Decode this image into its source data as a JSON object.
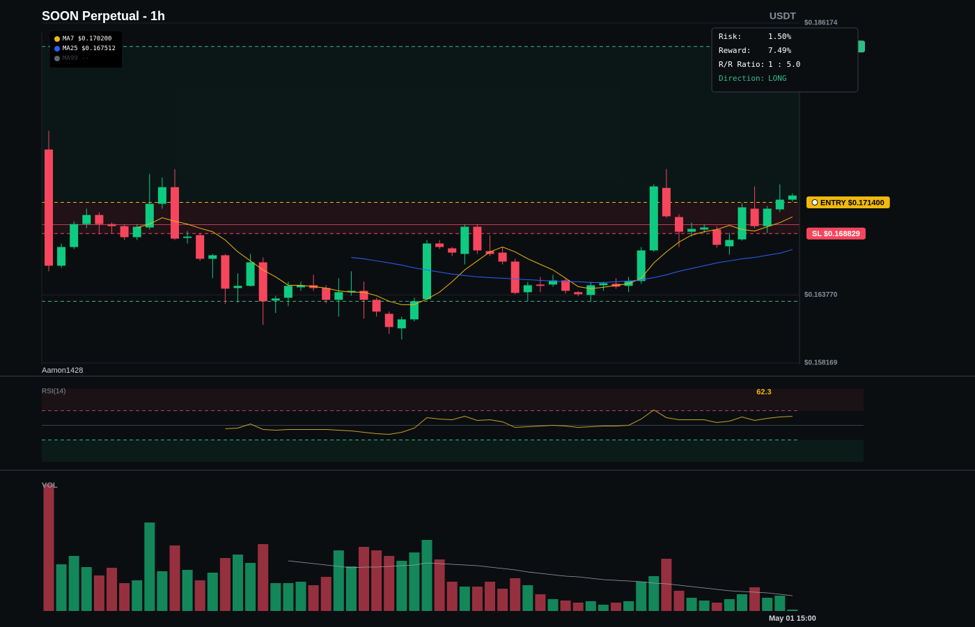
{
  "header": {
    "title": "SOON Perpetual - 1h",
    "quote": "USDT",
    "watermark": "Aamon1428"
  },
  "risk_panel": {
    "rows": [
      [
        "Risk:",
        "1.50%"
      ],
      [
        "Reward:",
        "7.49%"
      ],
      [
        "R/R Ratio:",
        "1 : 5.0"
      ],
      [
        "Direction:",
        "LONG"
      ]
    ]
  },
  "chart_data": [
    {
      "type": "candlestick",
      "categories": [
        null,
        null,
        null,
        null,
        null,
        null,
        null,
        null,
        null,
        null,
        null,
        null,
        null,
        null,
        null,
        null,
        null,
        null,
        null,
        null,
        null,
        null,
        null,
        null,
        null,
        null,
        null,
        null,
        null,
        null,
        null,
        null,
        null,
        null,
        null,
        null,
        null,
        null,
        null,
        null,
        null,
        null,
        null,
        null,
        null,
        null,
        null,
        null,
        null,
        null,
        null,
        null,
        null,
        null,
        null,
        null,
        null,
        null,
        null,
        "May 01 15:00"
      ],
      "open": [
        0.17575,
        0.16618,
        0.16772,
        0.16961,
        0.17036,
        0.16961,
        0.16944,
        0.16853,
        0.16933,
        0.17128,
        0.17265,
        0.16847,
        0.1687,
        0.16675,
        0.16704,
        0.16434,
        0.16452,
        0.16646,
        0.16331,
        0.16354,
        0.1644,
        0.16457,
        0.16434,
        0.16337,
        0.164,
        0.16411,
        0.16337,
        0.16222,
        0.16102,
        0.16176,
        0.16343,
        0.16801,
        0.16761,
        0.16715,
        0.16939,
        0.16738,
        0.16726,
        0.16652,
        0.164,
        0.16463,
        0.16463,
        0.16497,
        0.164,
        0.16377,
        0.16457,
        0.16469,
        0.16452,
        0.16492,
        0.16744,
        0.17259,
        0.17019,
        0.16898,
        0.16916,
        0.16916,
        0.16778,
        0.16835,
        0.17088,
        0.16944,
        0.17082,
        0.17162
      ],
      "high": [
        0.17729,
        0.16801,
        0.16984,
        0.17088,
        0.17059,
        0.16973,
        0.16961,
        0.16961,
        0.17374,
        0.17345,
        0.17414,
        0.16904,
        0.16887,
        0.16715,
        0.16715,
        0.16555,
        0.16715,
        0.16686,
        0.16371,
        0.16486,
        0.16486,
        0.16543,
        0.16457,
        0.16515,
        0.16572,
        0.16486,
        0.16354,
        0.1624,
        0.16199,
        0.16354,
        0.1683,
        0.1683,
        0.16772,
        0.16961,
        0.16961,
        0.1687,
        0.16772,
        0.16675,
        0.16486,
        0.16526,
        0.16543,
        0.16515,
        0.16411,
        0.16486,
        0.16486,
        0.16515,
        0.16526,
        0.16772,
        0.17288,
        0.17414,
        0.17042,
        0.16973,
        0.16961,
        0.16944,
        0.16887,
        0.17133,
        0.17271,
        0.1711,
        0.17288,
        0.17214
      ],
      "low": [
        0.16572,
        0.166,
        0.16755,
        0.16927,
        0.16876,
        0.16887,
        0.1683,
        0.1683,
        0.16916,
        0.17088,
        0.1683,
        0.16801,
        0.16658,
        0.16515,
        0.16303,
        0.16314,
        0.16446,
        0.16131,
        0.16228,
        0.16285,
        0.16411,
        0.16411,
        0.16308,
        0.16199,
        0.16371,
        0.16182,
        0.16199,
        0.16056,
        0.1601,
        0.16159,
        0.16331,
        0.16755,
        0.16698,
        0.16629,
        0.16715,
        0.16698,
        0.16629,
        0.16383,
        0.16325,
        0.164,
        0.16446,
        0.16388,
        0.16366,
        0.1632,
        0.16411,
        0.16429,
        0.164,
        0.16469,
        0.16732,
        0.17013,
        0.16772,
        0.16858,
        0.16887,
        0.16767,
        0.16709,
        0.16824,
        0.16927,
        0.16887,
        0.17059,
        0.17145
      ],
      "close": [
        0.16618,
        0.16772,
        0.16961,
        0.17036,
        0.16961,
        0.16944,
        0.16853,
        0.16939,
        0.17128,
        0.17265,
        0.16841,
        0.16858,
        0.16675,
        0.16704,
        0.16429,
        0.16452,
        0.16646,
        0.16325,
        0.16348,
        0.16452,
        0.16457,
        0.16434,
        0.16337,
        0.164,
        0.16411,
        0.16337,
        0.1624,
        0.16113,
        0.16176,
        0.16325,
        0.16801,
        0.16772,
        0.16726,
        0.16939,
        0.16744,
        0.16715,
        0.16652,
        0.16394,
        0.16457,
        0.16452,
        0.16497,
        0.16411,
        0.16383,
        0.16457,
        0.16474,
        0.16446,
        0.16492,
        0.16744,
        0.17271,
        0.17025,
        0.16898,
        0.16921,
        0.16933,
        0.1679,
        0.1683,
        0.17099,
        0.16944,
        0.17088,
        0.17162,
        0.17196
      ],
      "up_color": "#0ecb81",
      "down_color": "#f6465d",
      "ylim": [
        0.158169,
        0.186174
      ],
      "yticks": [
        {
          "value": 0.186174,
          "label": "$0.186174"
        },
        {
          "value": 0.16377,
          "label": "$0.163770"
        },
        {
          "value": 0.158169,
          "label": "$0.158169"
        }
      ],
      "grid": true,
      "series": [
        {
          "name": "MA7",
          "legend_label": "$0.170200",
          "color": "#f0b90b",
          "values": [
            null,
            null,
            null,
            null,
            null,
            null,
            null,
            0.16933,
            0.16961,
            0.17013,
            0.16984,
            0.16961,
            0.16927,
            0.16898,
            0.1683,
            0.16732,
            0.16658,
            0.16583,
            0.16526,
            0.16457,
            0.16457,
            0.16446,
            0.16434,
            0.16411,
            0.164,
            0.164,
            0.16371,
            0.16325,
            0.16297,
            0.16297,
            0.16343,
            0.164,
            0.16486,
            0.16583,
            0.16658,
            0.16732,
            0.16772,
            0.16732,
            0.16675,
            0.16629,
            0.16583,
            0.16515,
            0.16446,
            0.16429,
            0.1644,
            0.16457,
            0.16469,
            0.16515,
            0.16641,
            0.16732,
            0.16813,
            0.1687,
            0.16898,
            0.16916,
            0.1695,
            0.16916,
            0.16904,
            0.16939,
            0.16973,
            0.1702
          ]
        },
        {
          "name": "MA25",
          "legend_label": "$0.167512",
          "color": "#2962ff",
          "values": [
            null,
            null,
            null,
            null,
            null,
            null,
            null,
            null,
            null,
            null,
            null,
            null,
            null,
            null,
            null,
            null,
            null,
            null,
            null,
            null,
            null,
            null,
            null,
            null,
            0.16686,
            0.16675,
            0.16658,
            0.16641,
            0.16623,
            0.166,
            0.16583,
            0.16566,
            0.16549,
            0.16537,
            0.16526,
            0.1652,
            0.16515,
            0.16509,
            0.16503,
            0.16497,
            0.16492,
            0.16486,
            0.16486,
            0.1648,
            0.1648,
            0.16486,
            0.16492,
            0.16503,
            0.1652,
            0.16543,
            0.16572,
            0.16595,
            0.16618,
            0.16641,
            0.16658,
            0.16675,
            0.16686,
            0.16704,
            0.16721,
            0.167512
          ]
        },
        {
          "name": "MA99",
          "legend_label": "--",
          "color": "#5e6673"
        }
      ],
      "levels": [
        {
          "value": 0.18424,
          "color": "#2ebd85",
          "style": "dashed"
        },
        {
          "value": 0.1714,
          "label": "ENTRY $0.171400",
          "color": "#f0b90b",
          "style": "dashed"
        },
        {
          "value": 0.168829,
          "label": "SL $0.168829",
          "color": "#f6465d",
          "style": "dashed"
        },
        {
          "value": 0.16956,
          "color": "#b8405a",
          "style": "solid"
        },
        {
          "value": 0.16325,
          "color": "#2ebd85",
          "style": "dashed"
        }
      ]
    },
    {
      "type": "line",
      "title": "RSI(14)",
      "color": "#c9a227",
      "values": [
        null,
        null,
        null,
        null,
        null,
        null,
        null,
        null,
        null,
        null,
        null,
        null,
        null,
        null,
        45.2,
        46.2,
        51.9,
        44.3,
        43.3,
        44.3,
        44.3,
        44.3,
        44.3,
        43.3,
        42.4,
        40.5,
        38.6,
        37.6,
        40.5,
        46.2,
        60.5,
        58.6,
        57.6,
        62.4,
        56.7,
        57.6,
        54.8,
        47.1,
        48.1,
        49.0,
        50.0,
        49.0,
        47.1,
        48.1,
        49.0,
        49.0,
        50.0,
        58.6,
        71.0,
        60.5,
        57.6,
        57.6,
        57.6,
        53.8,
        55.7,
        61.4,
        56.7,
        59.5,
        61.4,
        62.3
      ],
      "ylim": [
        0,
        100
      ],
      "levels": [
        {
          "value": 70,
          "color": "#b8405a",
          "style": "dashed"
        },
        {
          "value": 50,
          "color": "#3a3f47",
          "style": "solid"
        },
        {
          "value": 30,
          "color": "#2ebd85",
          "style": "dashed"
        }
      ]
    },
    {
      "type": "bar",
      "title": "VOL",
      "up_color": "#13875a",
      "down_color": "#96303f",
      "ma_color": "#9aa0a8",
      "values": [
        182,
        67,
        79,
        63,
        51,
        62,
        40,
        44,
        127,
        57,
        94,
        59,
        44,
        55,
        76,
        81,
        69,
        96,
        40,
        40,
        42,
        37,
        49,
        87,
        64,
        92,
        87,
        79,
        72,
        84,
        102,
        74,
        42,
        35,
        35,
        42,
        32,
        47,
        37,
        24,
        17,
        15,
        12,
        14,
        9,
        12,
        14,
        42,
        50,
        75,
        29,
        19,
        15,
        12,
        17,
        24,
        34,
        19,
        22,
        2
      ],
      "ma_values": [
        null,
        null,
        null,
        null,
        null,
        null,
        null,
        null,
        null,
        null,
        null,
        null,
        null,
        null,
        null,
        null,
        null,
        null,
        null,
        72,
        70,
        68,
        66,
        64,
        62,
        63,
        63,
        64,
        65,
        66,
        69,
        68,
        67,
        66,
        65,
        63,
        61,
        59,
        56,
        54,
        52,
        50,
        49,
        47,
        45,
        44,
        43,
        42,
        40,
        39,
        37,
        35,
        33,
        31,
        29,
        28,
        27,
        26,
        24,
        22
      ],
      "ylim": [
        0,
        190
      ]
    }
  ]
}
